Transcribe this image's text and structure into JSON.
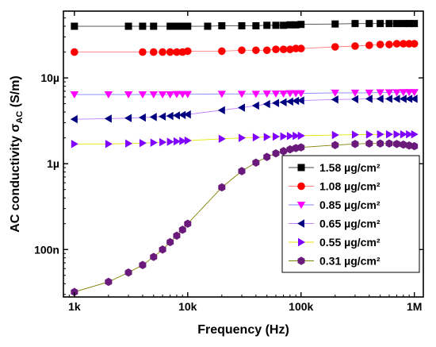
{
  "chart_data": {
    "type": "line",
    "xlabel": "Frequency (Hz)",
    "ylabel_main": "AC conductivity σ",
    "ylabel_sub": "AC",
    "ylabel_unit": " (S/m)",
    "xscale": "log",
    "yscale": "log",
    "xlim": [
      800,
      1200000
    ],
    "ylim": [
      2.8e-08,
      6e-05
    ],
    "x_ticks": [
      {
        "value": 1000,
        "label": "1k"
      },
      {
        "value": 10000,
        "label": "10k"
      },
      {
        "value": 100000,
        "label": "100k"
      },
      {
        "value": 1000000,
        "label": "1M"
      }
    ],
    "y_ticks": [
      {
        "value": 1e-07,
        "label": "100n"
      },
      {
        "value": 1e-06,
        "label": "1µ"
      },
      {
        "value": 1e-05,
        "label": "10µ"
      }
    ],
    "grid": false,
    "legend_position": "bottom-right",
    "series": [
      {
        "name": "1.58 µg/cm²",
        "marker": "square",
        "color": "#000000",
        "line_color": "#444444",
        "x": [
          1000,
          3000,
          4000,
          5000,
          7000,
          8000,
          9000,
          10000,
          15000,
          20000,
          30000,
          40000,
          50000,
          60000,
          70000,
          80000,
          90000,
          100000,
          200000,
          300000,
          400000,
          500000,
          600000,
          700000,
          800000,
          900000,
          1000000
        ],
        "y": [
          4e-05,
          4e-05,
          4e-05,
          4e-05,
          4e-05,
          4e-05,
          4e-05,
          4e-05,
          4e-05,
          4.05e-05,
          4.05e-05,
          4.05e-05,
          4.1e-05,
          4.1e-05,
          4.1e-05,
          4.15e-05,
          4.15e-05,
          4.2e-05,
          4.25e-05,
          4.3e-05,
          4.3e-05,
          4.3e-05,
          4.3e-05,
          4.3e-05,
          4.3e-05,
          4.3e-05,
          4.3e-05
        ]
      },
      {
        "name": "1.08 µg/cm²",
        "marker": "circle",
        "color": "#ff0000",
        "line_color": "#ff8080",
        "x": [
          1000,
          4000,
          5000,
          6000,
          7000,
          8000,
          9000,
          10000,
          20000,
          30000,
          40000,
          50000,
          60000,
          70000,
          80000,
          90000,
          100000,
          200000,
          300000,
          400000,
          500000,
          600000,
          700000,
          800000,
          900000,
          1000000
        ],
        "y": [
          2e-05,
          2e-05,
          2e-05,
          2e-05,
          2e-05,
          2e-05,
          2e-05,
          2.05e-05,
          2.05e-05,
          2.1e-05,
          2.1e-05,
          2.1e-05,
          2.15e-05,
          2.15e-05,
          2.15e-05,
          2.2e-05,
          2.2e-05,
          2.3e-05,
          2.35e-05,
          2.4e-05,
          2.45e-05,
          2.45e-05,
          2.5e-05,
          2.5e-05,
          2.5e-05,
          2.5e-05
        ]
      },
      {
        "name": "0.85 µg/cm²",
        "marker": "triangle-down",
        "color": "#ff00ff",
        "line_color": "#8080ff",
        "x": [
          1000,
          2000,
          3000,
          4000,
          5000,
          6000,
          7000,
          8000,
          9000,
          10000,
          20000,
          30000,
          40000,
          50000,
          60000,
          70000,
          80000,
          90000,
          100000,
          200000,
          300000,
          400000,
          500000,
          600000,
          700000,
          800000,
          900000,
          1000000
        ],
        "y": [
          6.4e-06,
          6.4e-06,
          6.4e-06,
          6.4e-06,
          6.4e-06,
          6.4e-06,
          6.4e-06,
          6.45e-06,
          6.45e-06,
          6.45e-06,
          6.5e-06,
          6.5e-06,
          6.5e-06,
          6.55e-06,
          6.55e-06,
          6.55e-06,
          6.6e-06,
          6.6e-06,
          6.6e-06,
          6.7e-06,
          6.7e-06,
          6.7e-06,
          6.75e-06,
          6.75e-06,
          6.75e-06,
          6.8e-06,
          6.8e-06,
          6.8e-06
        ]
      },
      {
        "name": "0.65 µg/cm²",
        "marker": "triangle-left",
        "color": "#000080",
        "line_color": "#c080ff",
        "x": [
          1000,
          2000,
          3000,
          4000,
          5000,
          6000,
          7000,
          8000,
          9000,
          10000,
          20000,
          30000,
          40000,
          50000,
          60000,
          70000,
          80000,
          90000,
          100000,
          200000,
          300000,
          400000,
          500000,
          600000,
          700000,
          800000,
          900000,
          1000000
        ],
        "y": [
          3.3e-06,
          3.35e-06,
          3.4e-06,
          3.45e-06,
          3.5e-06,
          3.55e-06,
          3.6e-06,
          3.65e-06,
          3.7e-06,
          3.75e-06,
          4.2e-06,
          4.5e-06,
          4.75e-06,
          4.95e-06,
          5.1e-06,
          5.2e-06,
          5.3e-06,
          5.4e-06,
          5.45e-06,
          5.6e-06,
          5.65e-06,
          5.7e-06,
          5.7e-06,
          5.7e-06,
          5.7e-06,
          5.7e-06,
          5.7e-06,
          5.7e-06
        ]
      },
      {
        "name": "0.55 µg/cm²",
        "marker": "triangle-right",
        "color": "#8000ff",
        "line_color": "#e6e600",
        "x": [
          1000,
          2000,
          3000,
          4000,
          5000,
          6000,
          7000,
          8000,
          9000,
          10000,
          20000,
          30000,
          40000,
          50000,
          60000,
          70000,
          80000,
          90000,
          100000,
          200000,
          300000,
          400000,
          500000,
          600000,
          700000,
          800000,
          900000,
          1000000
        ],
        "y": [
          1.7e-06,
          1.7e-06,
          1.72e-06,
          1.74e-06,
          1.76e-06,
          1.78e-06,
          1.8e-06,
          1.82e-06,
          1.84e-06,
          1.86e-06,
          1.95e-06,
          2e-06,
          2.03e-06,
          2.05e-06,
          2.07e-06,
          2.08e-06,
          2.1e-06,
          2.11e-06,
          2.12e-06,
          2.16e-06,
          2.18e-06,
          2.19e-06,
          2.2e-06,
          2.2e-06,
          2.2e-06,
          2.2e-06,
          2.2e-06,
          2.2e-06
        ]
      },
      {
        "name": "0.31 µg/cm²",
        "marker": "hexagon",
        "color": "#6a1a7a",
        "line_color": "#808000",
        "x": [
          1000,
          2000,
          3000,
          4000,
          5000,
          6000,
          7000,
          8000,
          9000,
          10000,
          20000,
          30000,
          40000,
          50000,
          60000,
          70000,
          80000,
          90000,
          100000,
          200000,
          300000,
          400000,
          500000,
          600000,
          700000,
          800000,
          900000,
          1000000
        ],
        "y": [
          3.2e-08,
          4.2e-08,
          5.4e-08,
          6.6e-08,
          8.2e-08,
          1e-07,
          1.22e-07,
          1.45e-07,
          1.7e-07,
          2e-07,
          5.3e-07,
          8.2e-07,
          1.03e-06,
          1.2e-06,
          1.32e-06,
          1.4e-06,
          1.47e-06,
          1.52e-06,
          1.55e-06,
          1.65e-06,
          1.7e-06,
          1.72e-06,
          1.72e-06,
          1.72e-06,
          1.7e-06,
          1.67e-06,
          1.63e-06,
          1.6e-06
        ]
      }
    ]
  }
}
